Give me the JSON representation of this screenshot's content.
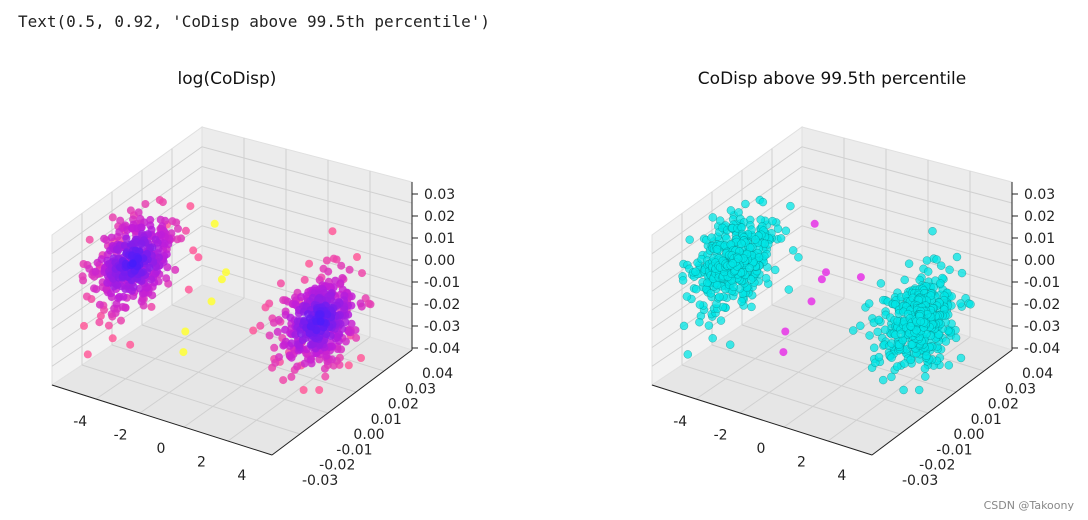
{
  "output_text": "Text(0.5, 0.92, 'CoDisp above 99.5th percentile')",
  "watermark": "CSDN @Takoony",
  "chart_data": [
    {
      "type": "scatter3d",
      "title": "log(CoDisp)",
      "colormap": "spring-to-blue",
      "x_ticks": [
        "-4",
        "-2",
        "0",
        "2",
        "4"
      ],
      "y_ticks": [
        "0.04",
        "0.03",
        "0.02",
        "0.01",
        "0.00",
        "-0.01",
        "-0.02",
        "-0.03"
      ],
      "z_ticks": [
        "0.03",
        "0.02",
        "0.01",
        "0.00",
        "-0.01",
        "-0.02",
        "-0.03",
        "-0.04"
      ],
      "clusters": [
        {
          "name": "left-cluster",
          "center": [
            -4.2,
            0.0,
            0.0
          ],
          "count": 420
        },
        {
          "name": "right-cluster",
          "center": [
            4.2,
            0.0,
            0.0
          ],
          "count": 420
        }
      ],
      "outliers": [
        [
          -0.5,
          0.005,
          0.004
        ],
        [
          -0.2,
          0.0,
          0.005
        ],
        [
          0.3,
          -0.01,
          0.003
        ],
        [
          -0.4,
          -0.015,
          -0.01
        ],
        [
          0.0,
          -0.02,
          -0.015
        ],
        [
          -1.5,
          0.01,
          0.02
        ]
      ],
      "colors": {
        "low": "#3b1cff",
        "mid": "#c21dd8",
        "high": "#ff5a9a",
        "top": "#ffff33"
      }
    },
    {
      "type": "scatter3d",
      "title": "CoDisp above 99.5th percentile",
      "x_ticks": [
        "-4",
        "-2",
        "0",
        "2",
        "4"
      ],
      "y_ticks": [
        "0.04",
        "0.03",
        "0.02",
        "0.01",
        "0.00",
        "-0.01",
        "-0.02",
        "-0.03"
      ],
      "z_ticks": [
        "0.03",
        "0.02",
        "0.01",
        "0.00",
        "-0.01",
        "-0.02",
        "-0.03",
        "-0.04"
      ],
      "clusters": [
        {
          "name": "left-cluster",
          "center": [
            -4.2,
            0.0,
            0.0
          ],
          "count": 420
        },
        {
          "name": "right-cluster",
          "center": [
            4.2,
            0.0,
            0.0
          ],
          "count": 420
        }
      ],
      "outliers": [
        [
          -0.5,
          0.005,
          0.004
        ],
        [
          -0.2,
          0.0,
          0.005
        ],
        [
          0.3,
          -0.01,
          0.003
        ],
        [
          -0.4,
          -0.015,
          -0.01
        ],
        [
          0.0,
          -0.02,
          -0.015
        ],
        [
          -1.5,
          0.01,
          0.02
        ],
        [
          0.6,
          0.01,
          0.002
        ]
      ],
      "colors": {
        "normal": "#00e5e5",
        "anomaly": "#e633e6"
      }
    }
  ]
}
